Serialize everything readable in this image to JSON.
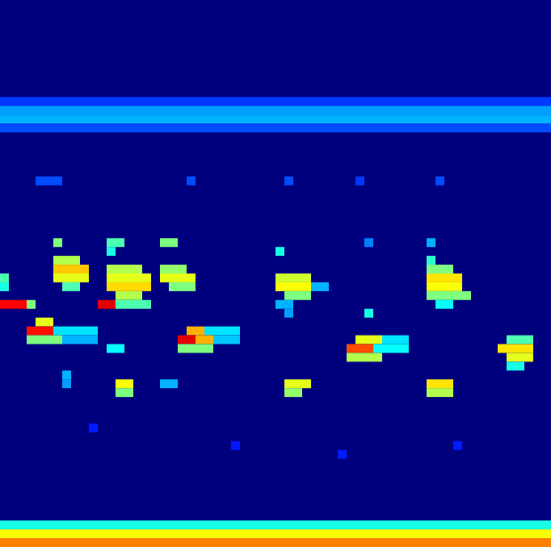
{
  "chart_data": {
    "type": "heatmap",
    "tick_labels": false,
    "columns": 62,
    "rows": 62,
    "background": 0,
    "color_range": [
      0,
      1
    ],
    "cells": [
      [
        11,
        0,
        61,
        0.18
      ],
      [
        12,
        0,
        61,
        0.28
      ],
      [
        13,
        0,
        61,
        0.3
      ],
      [
        14,
        0,
        61,
        0.2
      ],
      [
        59,
        0,
        61,
        0.4
      ],
      [
        60,
        0,
        61,
        0.62
      ],
      [
        61,
        0,
        61,
        0.75
      ],
      [
        31,
        0,
        0,
        0.45
      ],
      [
        32,
        0,
        0,
        0.4
      ],
      [
        34,
        0,
        2,
        0.88
      ],
      [
        34,
        3,
        3,
        0.5
      ],
      [
        36,
        4,
        5,
        0.6
      ],
      [
        37,
        3,
        5,
        0.86
      ],
      [
        37,
        6,
        10,
        0.35
      ],
      [
        38,
        3,
        6,
        0.5
      ],
      [
        38,
        7,
        10,
        0.3
      ],
      [
        29,
        6,
        8,
        0.55
      ],
      [
        30,
        6,
        9,
        0.68
      ],
      [
        31,
        6,
        9,
        0.6
      ],
      [
        32,
        7,
        8,
        0.45
      ],
      [
        27,
        6,
        6,
        0.5
      ],
      [
        42,
        7,
        7,
        0.3
      ],
      [
        43,
        7,
        7,
        0.28
      ],
      [
        20,
        4,
        6,
        0.2
      ],
      [
        34,
        11,
        12,
        0.9
      ],
      [
        27,
        12,
        13,
        0.45
      ],
      [
        28,
        12,
        12,
        0.4
      ],
      [
        30,
        12,
        15,
        0.55
      ],
      [
        31,
        12,
        16,
        0.6
      ],
      [
        32,
        12,
        16,
        0.66
      ],
      [
        33,
        13,
        15,
        0.55
      ],
      [
        34,
        13,
        16,
        0.45
      ],
      [
        39,
        12,
        13,
        0.38
      ],
      [
        43,
        13,
        14,
        0.62
      ],
      [
        44,
        13,
        14,
        0.5
      ],
      [
        27,
        18,
        19,
        0.5
      ],
      [
        30,
        18,
        20,
        0.52
      ],
      [
        31,
        18,
        21,
        0.6
      ],
      [
        32,
        19,
        21,
        0.5
      ],
      [
        37,
        21,
        22,
        0.7
      ],
      [
        37,
        23,
        26,
        0.35
      ],
      [
        38,
        20,
        21,
        0.9
      ],
      [
        38,
        22,
        23,
        0.7
      ],
      [
        38,
        24,
        26,
        0.32
      ],
      [
        39,
        20,
        23,
        0.5
      ],
      [
        43,
        18,
        19,
        0.3
      ],
      [
        20,
        21,
        21,
        0.2
      ],
      [
        28,
        31,
        31,
        0.4
      ],
      [
        31,
        31,
        34,
        0.58
      ],
      [
        32,
        31,
        34,
        0.62
      ],
      [
        33,
        32,
        34,
        0.5
      ],
      [
        32,
        35,
        36,
        0.3
      ],
      [
        34,
        31,
        32,
        0.3
      ],
      [
        35,
        32,
        32,
        0.28
      ],
      [
        43,
        32,
        34,
        0.6
      ],
      [
        44,
        32,
        33,
        0.52
      ],
      [
        20,
        32,
        32,
        0.2
      ],
      [
        27,
        41,
        41,
        0.25
      ],
      [
        35,
        41,
        41,
        0.4
      ],
      [
        38,
        40,
        42,
        0.6
      ],
      [
        38,
        43,
        45,
        0.35
      ],
      [
        39,
        39,
        41,
        0.8
      ],
      [
        39,
        42,
        45,
        0.38
      ],
      [
        40,
        39,
        42,
        0.55
      ],
      [
        20,
        40,
        40,
        0.18
      ],
      [
        20,
        49,
        49,
        0.2
      ],
      [
        27,
        48,
        48,
        0.3
      ],
      [
        29,
        48,
        48,
        0.42
      ],
      [
        30,
        48,
        50,
        0.5
      ],
      [
        31,
        48,
        51,
        0.65
      ],
      [
        32,
        48,
        51,
        0.62
      ],
      [
        33,
        48,
        52,
        0.5
      ],
      [
        34,
        49,
        50,
        0.38
      ],
      [
        43,
        48,
        50,
        0.65
      ],
      [
        44,
        48,
        50,
        0.55
      ],
      [
        38,
        57,
        59,
        0.45
      ],
      [
        39,
        56,
        59,
        0.65
      ],
      [
        40,
        57,
        59,
        0.6
      ],
      [
        41,
        57,
        58,
        0.4
      ],
      [
        48,
        10,
        10,
        0.15
      ],
      [
        50,
        26,
        26,
        0.15
      ],
      [
        51,
        38,
        38,
        0.15
      ],
      [
        50,
        51,
        51,
        0.15
      ]
    ]
  }
}
